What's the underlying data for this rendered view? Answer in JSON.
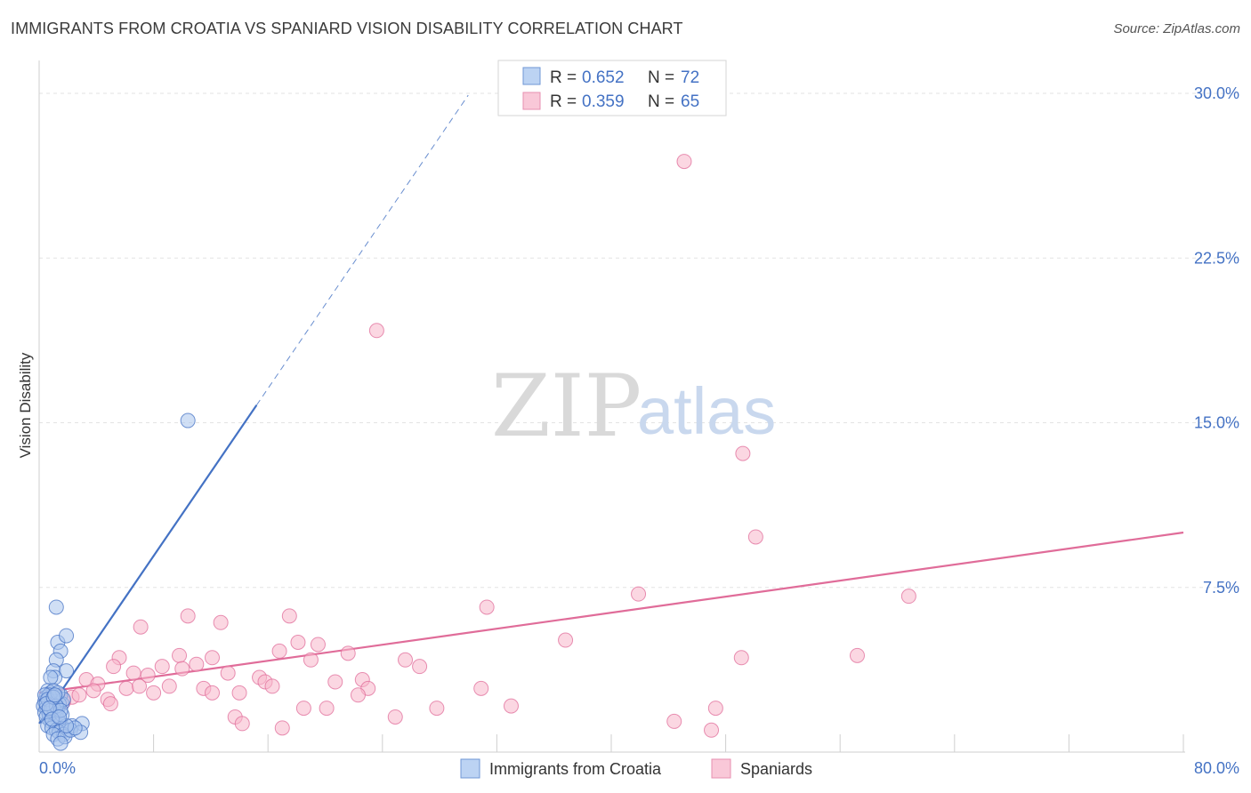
{
  "chart_data": {
    "type": "scatter",
    "title": "IMMIGRANTS FROM CROATIA VS SPANIARD VISION DISABILITY CORRELATION CHART",
    "source": "Source: ZipAtlas.com",
    "ylabel": "Vision Disability",
    "xlabel": "",
    "xlim": [
      0,
      80
    ],
    "ylim": [
      0,
      31.5
    ],
    "y_ticks": [
      {
        "value": 7.5,
        "label": "7.5%"
      },
      {
        "value": 15.0,
        "label": "15.0%"
      },
      {
        "value": 22.5,
        "label": "22.5%"
      },
      {
        "value": 30.0,
        "label": "30.0%"
      }
    ],
    "x_tick_labels": {
      "min": "0.0%",
      "max": "80.0%"
    },
    "legend_top": [
      {
        "r_label": "R = ",
        "r_value": "0.652",
        "n_label": "N = ",
        "n_value": "72"
      },
      {
        "r_label": "R = ",
        "r_value": "0.359",
        "n_label": "N = ",
        "n_value": "65"
      }
    ],
    "watermark": {
      "zip": "ZIP",
      "atlas": "atlas"
    },
    "series": [
      {
        "name": "Immigrants from Croatia",
        "color": "#4472c4",
        "fill": "#a9c4ec",
        "trend": {
          "x0": 0,
          "y0": 1.3,
          "x1": 15.2,
          "y1": 15.8,
          "dash_to_x": 30
        },
        "points": [
          [
            1.2,
            6.6
          ],
          [
            1.3,
            5.0
          ],
          [
            1.9,
            5.3
          ],
          [
            1.5,
            4.6
          ],
          [
            1.2,
            4.2
          ],
          [
            1.0,
            3.7
          ],
          [
            1.9,
            3.7
          ],
          [
            1.1,
            3.4
          ],
          [
            0.8,
            3.4
          ],
          [
            0.6,
            2.8
          ],
          [
            0.8,
            2.7
          ],
          [
            1.0,
            2.8
          ],
          [
            1.2,
            2.5
          ],
          [
            0.5,
            2.5
          ],
          [
            0.9,
            2.4
          ],
          [
            1.5,
            2.6
          ],
          [
            0.4,
            2.3
          ],
          [
            0.7,
            2.3
          ],
          [
            1.1,
            2.3
          ],
          [
            1.6,
            2.2
          ],
          [
            0.3,
            2.1
          ],
          [
            0.5,
            2.0
          ],
          [
            0.8,
            2.1
          ],
          [
            1.3,
            2.0
          ],
          [
            0.6,
            1.9
          ],
          [
            0.9,
            1.8
          ],
          [
            1.2,
            1.8
          ],
          [
            0.4,
            1.8
          ],
          [
            0.7,
            1.7
          ],
          [
            1.0,
            1.6
          ],
          [
            1.3,
            1.5
          ],
          [
            0.5,
            1.6
          ],
          [
            0.8,
            1.4
          ],
          [
            1.1,
            1.3
          ],
          [
            1.5,
            1.3
          ],
          [
            0.6,
            1.2
          ],
          [
            0.9,
            1.1
          ],
          [
            1.2,
            1.0
          ],
          [
            1.6,
            1.1
          ],
          [
            2.0,
            1.0
          ],
          [
            2.3,
            1.2
          ],
          [
            3.0,
            1.3
          ],
          [
            1.4,
            0.9
          ],
          [
            1.7,
            0.8
          ],
          [
            1.0,
            0.8
          ],
          [
            1.3,
            0.6
          ],
          [
            1.8,
            0.7
          ],
          [
            1.5,
            0.4
          ],
          [
            2.2,
            1.0
          ],
          [
            2.9,
            0.9
          ],
          [
            2.5,
            1.1
          ],
          [
            1.9,
            1.2
          ],
          [
            0.7,
            2.6
          ],
          [
            1.4,
            2.2
          ],
          [
            1.1,
            1.9
          ],
          [
            0.9,
            2.2
          ],
          [
            1.7,
            2.4
          ],
          [
            0.4,
            2.6
          ],
          [
            1.0,
            2.0
          ],
          [
            1.6,
            1.7
          ],
          [
            0.6,
            2.4
          ],
          [
            1.3,
            2.7
          ],
          [
            0.8,
            1.9
          ],
          [
            1.2,
            2.1
          ],
          [
            0.5,
            2.2
          ],
          [
            1.0,
            2.5
          ],
          [
            1.5,
            1.9
          ],
          [
            0.7,
            2.0
          ],
          [
            1.1,
            2.6
          ],
          [
            0.9,
            1.5
          ],
          [
            1.4,
            1.6
          ],
          [
            10.4,
            15.1
          ]
        ]
      },
      {
        "name": "Spaniards",
        "color": "#e06c99",
        "fill": "#f7b6cb",
        "trend": {
          "x0": 0,
          "y0": 2.7,
          "x1": 80,
          "y1": 10.0
        },
        "points": [
          [
            45.1,
            26.9
          ],
          [
            23.6,
            19.2
          ],
          [
            49.2,
            13.6
          ],
          [
            50.1,
            9.8
          ],
          [
            41.9,
            7.2
          ],
          [
            60.8,
            7.1
          ],
          [
            31.3,
            6.6
          ],
          [
            17.5,
            6.2
          ],
          [
            10.4,
            6.2
          ],
          [
            12.7,
            5.9
          ],
          [
            7.1,
            5.7
          ],
          [
            36.8,
            5.1
          ],
          [
            18.1,
            5.0
          ],
          [
            19.5,
            4.9
          ],
          [
            16.8,
            4.6
          ],
          [
            21.6,
            4.5
          ],
          [
            9.8,
            4.4
          ],
          [
            12.1,
            4.3
          ],
          [
            5.6,
            4.3
          ],
          [
            49.1,
            4.3
          ],
          [
            57.2,
            4.4
          ],
          [
            19.0,
            4.2
          ],
          [
            25.6,
            4.2
          ],
          [
            26.6,
            3.9
          ],
          [
            5.2,
            3.9
          ],
          [
            8.6,
            3.9
          ],
          [
            10.0,
            3.8
          ],
          [
            11.0,
            4.0
          ],
          [
            6.6,
            3.6
          ],
          [
            7.6,
            3.5
          ],
          [
            13.2,
            3.6
          ],
          [
            15.4,
            3.4
          ],
          [
            22.6,
            3.3
          ],
          [
            20.7,
            3.2
          ],
          [
            15.8,
            3.2
          ],
          [
            3.3,
            3.3
          ],
          [
            4.1,
            3.1
          ],
          [
            6.1,
            2.9
          ],
          [
            9.1,
            3.0
          ],
          [
            16.3,
            3.0
          ],
          [
            11.5,
            2.9
          ],
          [
            23.0,
            2.9
          ],
          [
            30.9,
            2.9
          ],
          [
            3.8,
            2.8
          ],
          [
            8.0,
            2.7
          ],
          [
            12.1,
            2.7
          ],
          [
            14.0,
            2.7
          ],
          [
            22.3,
            2.6
          ],
          [
            2.3,
            2.5
          ],
          [
            4.8,
            2.4
          ],
          [
            1.7,
            2.3
          ],
          [
            2.8,
            2.6
          ],
          [
            18.5,
            2.0
          ],
          [
            20.1,
            2.0
          ],
          [
            33.0,
            2.1
          ],
          [
            47.3,
            2.0
          ],
          [
            13.7,
            1.6
          ],
          [
            24.9,
            1.6
          ],
          [
            14.2,
            1.3
          ],
          [
            17.0,
            1.1
          ],
          [
            44.4,
            1.4
          ],
          [
            47.0,
            1.0
          ],
          [
            5.0,
            2.2
          ],
          [
            7.0,
            3.0
          ],
          [
            27.8,
            2.0
          ]
        ]
      }
    ]
  }
}
